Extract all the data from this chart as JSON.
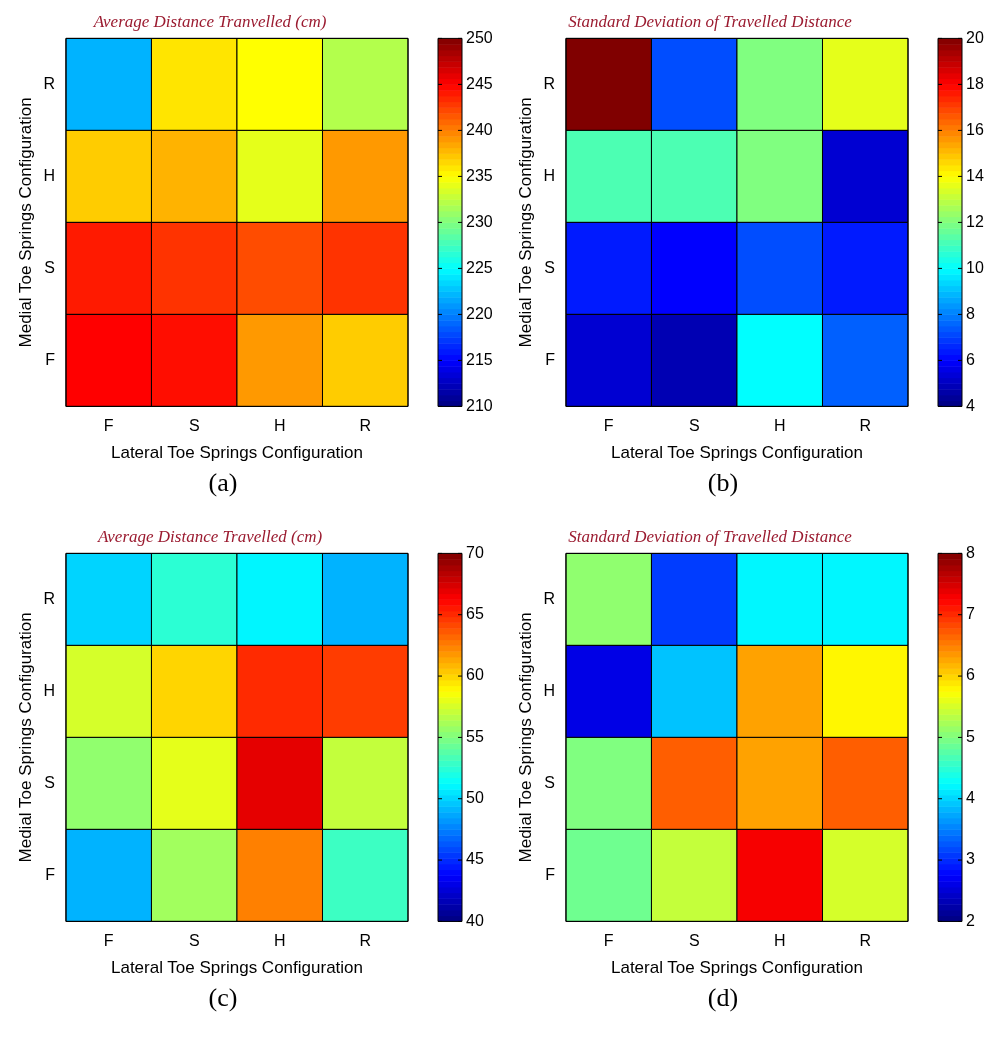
{
  "chart_data": [
    {
      "type": "heatmap",
      "title": "Average Distance Tranvelled (cm)",
      "xlabel": "Lateral Toe Springs Configuration",
      "ylabel": "Medial Toe Springs Configuration",
      "categories": [
        "F",
        "S",
        "H",
        "R"
      ],
      "y_categories": [
        "R",
        "H",
        "S",
        "F"
      ],
      "cells": [
        [
          222,
          236,
          235,
          232
        ],
        [
          237,
          238,
          234,
          239
        ],
        [
          244,
          243,
          242,
          243
        ],
        [
          245,
          244.5,
          239,
          237
        ]
      ],
      "clim": [
        210,
        250
      ],
      "cticks": [
        210,
        215,
        220,
        225,
        230,
        235,
        240,
        245,
        250
      ],
      "annotations": [
        "(a)"
      ]
    },
    {
      "type": "heatmap",
      "title": "Standard Deviation of Travelled Distance",
      "xlabel": "Lateral Toe Springs Configuration",
      "ylabel": "Medial Toe Springs Configuration",
      "categories": [
        "F",
        "S",
        "H",
        "R"
      ],
      "y_categories": [
        "R",
        "H",
        "S",
        "F"
      ],
      "cells": [
        [
          20,
          7.2,
          12,
          13.6
        ],
        [
          11.2,
          11.2,
          12,
          5.3
        ],
        [
          6.4,
          6,
          7.2,
          6.4
        ],
        [
          5.3,
          4.8,
          10,
          7.5
        ]
      ],
      "clim": [
        4,
        20
      ],
      "cticks": [
        4,
        6,
        8,
        10,
        12,
        14,
        16,
        18,
        20
      ],
      "annotations": [
        "(b)"
      ]
    },
    {
      "type": "heatmap",
      "title": "Average Distance Travelled (cm)",
      "xlabel": "Lateral Toe Springs Configuration",
      "ylabel": "Medial Toe Springs Configuration",
      "categories": [
        "F",
        "S",
        "H",
        "R"
      ],
      "y_categories": [
        "R",
        "H",
        "S",
        "F"
      ],
      "cells": [
        [
          50,
          52.5,
          51,
          49
        ],
        [
          57.5,
          60,
          65,
          64.5
        ],
        [
          55.5,
          58,
          67,
          57
        ],
        [
          49,
          56,
          62.5,
          53
        ]
      ],
      "clim": [
        40,
        70
      ],
      "cticks": [
        40,
        45,
        50,
        55,
        60,
        65,
        70
      ],
      "annotations": [
        "(c)"
      ]
    },
    {
      "type": "heatmap",
      "title": "Standard Deviation of Travelled Distance",
      "xlabel": "Lateral Toe Springs Configuration",
      "ylabel": "Medial Toe Springs Configuration",
      "categories": [
        "F",
        "S",
        "H",
        "R"
      ],
      "y_categories": [
        "R",
        "H",
        "S",
        "F"
      ],
      "cells": [
        [
          5.1,
          3.1,
          4.2,
          4.2
        ],
        [
          2.6,
          3.9,
          6.3,
          5.8
        ],
        [
          5,
          6.7,
          6.3,
          6.7
        ],
        [
          4.9,
          5.4,
          7.3,
          5.5
        ]
      ],
      "clim": [
        2,
        8
      ],
      "cticks": [
        2,
        3,
        4,
        5,
        6,
        7,
        8
      ],
      "annotations": [
        "(d)"
      ]
    }
  ]
}
